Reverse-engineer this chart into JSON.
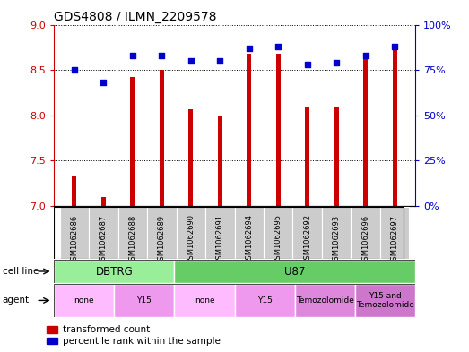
{
  "title": "GDS4808 / ILMN_2209578",
  "samples": [
    "GSM1062686",
    "GSM1062687",
    "GSM1062688",
    "GSM1062689",
    "GSM1062690",
    "GSM1062691",
    "GSM1062694",
    "GSM1062695",
    "GSM1062692",
    "GSM1062693",
    "GSM1062696",
    "GSM1062697"
  ],
  "transformed_count": [
    7.33,
    7.1,
    8.42,
    8.5,
    8.07,
    8.0,
    8.68,
    8.68,
    8.1,
    8.1,
    8.65,
    8.78
  ],
  "percentile_rank": [
    75,
    68,
    83,
    83,
    80,
    80,
    87,
    88,
    78,
    79,
    83,
    88
  ],
  "ylim_left": [
    7,
    9
  ],
  "ylim_right": [
    0,
    100
  ],
  "yticks_left": [
    7,
    7.5,
    8,
    8.5,
    9
  ],
  "yticks_right": [
    0,
    25,
    50,
    75,
    100
  ],
  "bar_color": "#cc0000",
  "dot_color": "#0000cc",
  "cell_line_groups": [
    {
      "label": "DBTRG",
      "start": 0,
      "end": 3,
      "color": "#99ee99"
    },
    {
      "label": "U87",
      "start": 4,
      "end": 11,
      "color": "#66cc66"
    }
  ],
  "agent_groups": [
    {
      "label": "none",
      "start": 0,
      "end": 1,
      "color": "#ffbbff"
    },
    {
      "label": "Y15",
      "start": 2,
      "end": 3,
      "color": "#ee99ee"
    },
    {
      "label": "none",
      "start": 4,
      "end": 5,
      "color": "#ffbbff"
    },
    {
      "label": "Y15",
      "start": 6,
      "end": 7,
      "color": "#ee99ee"
    },
    {
      "label": "Temozolomide",
      "start": 8,
      "end": 9,
      "color": "#dd88dd"
    },
    {
      "label": "Y15 and\nTemozolomide",
      "start": 10,
      "end": 11,
      "color": "#cc77cc"
    }
  ],
  "background_color": "#ffffff",
  "bar_width": 0.15,
  "dot_size": 25,
  "sample_bg_color": "#cccccc",
  "plot_bg_color": "#ffffff"
}
